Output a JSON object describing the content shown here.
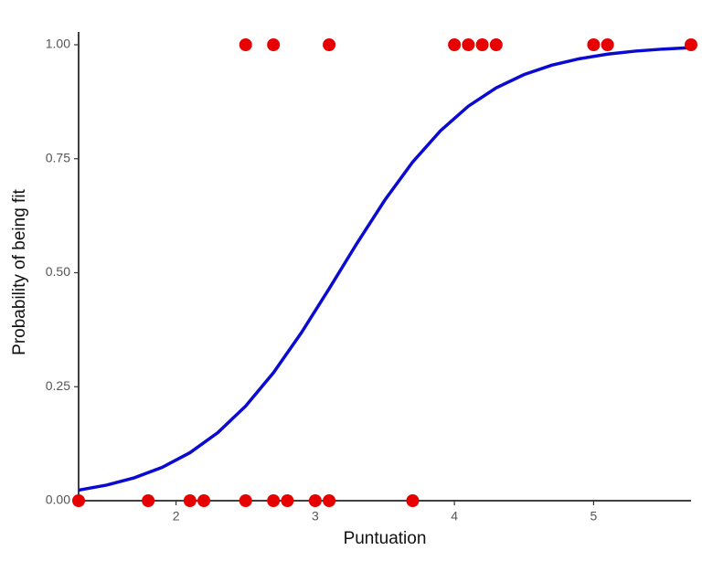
{
  "chart_data": {
    "type": "scatter",
    "x_label": "Puntuation",
    "y_label": "Probability of being fit",
    "xlim": [
      1.3,
      5.7
    ],
    "ylim": [
      0,
      1
    ],
    "xticks": [
      2,
      3,
      4,
      5
    ],
    "yticks": [
      {
        "value": 0,
        "label": "0.00"
      },
      {
        "value": 0.25,
        "label": "0.25"
      },
      {
        "value": 0.5,
        "label": "0.50"
      },
      {
        "value": 0.75,
        "label": "0.75"
      },
      {
        "value": 1,
        "label": "1.00"
      }
    ],
    "grid": false,
    "series": [
      {
        "type": "scatter",
        "color": "#e60000",
        "x": [
          2.5,
          2.7,
          3.1,
          4.0,
          4.1,
          4.2,
          4.3,
          5.0,
          5.1,
          5.7,
          1.3,
          1.8,
          2.1,
          2.2,
          2.5,
          2.7,
          2.8,
          3.0,
          3.1,
          3.7
        ],
        "values": [
          1,
          1,
          1,
          1,
          1,
          1,
          1,
          1,
          1,
          1,
          0,
          0,
          0,
          0,
          0,
          0,
          0,
          0,
          0,
          0
        ]
      },
      {
        "type": "line",
        "color": "#0a0ad0",
        "x": [
          1.3,
          1.5,
          1.7,
          1.9,
          2.1,
          2.3,
          2.5,
          2.7,
          2.9,
          3.1,
          3.3,
          3.5,
          3.7,
          3.9,
          4.1,
          4.3,
          4.5,
          4.7,
          4.9,
          5.1,
          5.3,
          5.5,
          5.7
        ],
        "values": [
          0.0232,
          0.0342,
          0.0502,
          0.0731,
          0.1053,
          0.1493,
          0.2075,
          0.2808,
          0.3682,
          0.4651,
          0.5646,
          0.6593,
          0.7427,
          0.8115,
          0.8653,
          0.9055,
          0.9346,
          0.9552,
          0.9695,
          0.9794,
          0.9861,
          0.9906,
          0.9937
        ]
      }
    ]
  }
}
